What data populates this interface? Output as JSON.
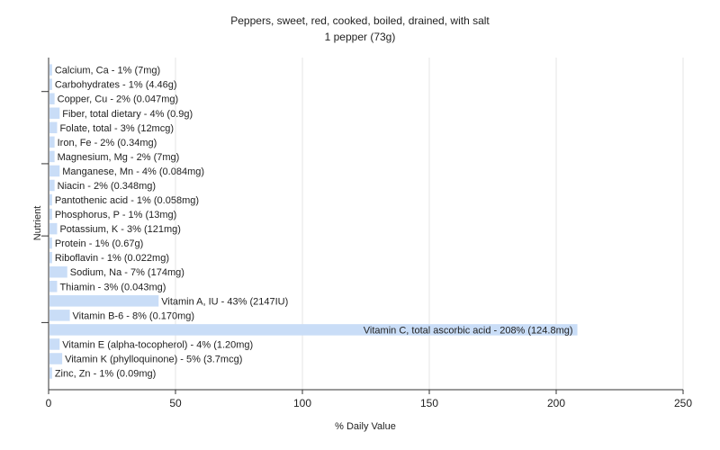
{
  "chart_data": {
    "type": "bar",
    "orientation": "horizontal",
    "title": "Peppers, sweet, red, cooked, boiled, drained, with salt",
    "subtitle": "1 pepper (73g)",
    "xlabel": "% Daily Value",
    "ylabel": "Nutrient",
    "xlim": [
      0,
      250
    ],
    "xticks": [
      "0",
      "50",
      "100",
      "150",
      "200",
      "250"
    ],
    "grid": true,
    "bar_color": "#c9ddf7",
    "categories": [
      "Calcium, Ca - 1% (7mg)",
      "Carbohydrates - 1% (4.46g)",
      "Copper, Cu - 2% (0.047mg)",
      "Fiber, total dietary - 4% (0.9g)",
      "Folate, total - 3% (12mcg)",
      "Iron, Fe - 2% (0.34mg)",
      "Magnesium, Mg - 2% (7mg)",
      "Manganese, Mn - 4% (0.084mg)",
      "Niacin - 2% (0.348mg)",
      "Pantothenic acid - 1% (0.058mg)",
      "Phosphorus, P - 1% (13mg)",
      "Potassium, K - 3% (121mg)",
      "Protein - 1% (0.67g)",
      "Riboflavin - 1% (0.022mg)",
      "Sodium, Na - 7% (174mg)",
      "Thiamin - 3% (0.043mg)",
      "Vitamin A, IU - 43% (2147IU)",
      "Vitamin B-6 - 8% (0.170mg)",
      "Vitamin C, total ascorbic acid - 208% (124.8mg)",
      "Vitamin E (alpha-tocopherol) - 4% (1.20mg)",
      "Vitamin K (phylloquinone) - 5% (3.7mcg)",
      "Zinc, Zn - 1% (0.09mg)"
    ],
    "values": [
      1,
      1,
      2,
      4,
      3,
      2,
      2,
      4,
      2,
      1,
      1,
      3,
      1,
      1,
      7,
      3,
      43,
      8,
      208,
      4,
      5,
      1
    ]
  }
}
